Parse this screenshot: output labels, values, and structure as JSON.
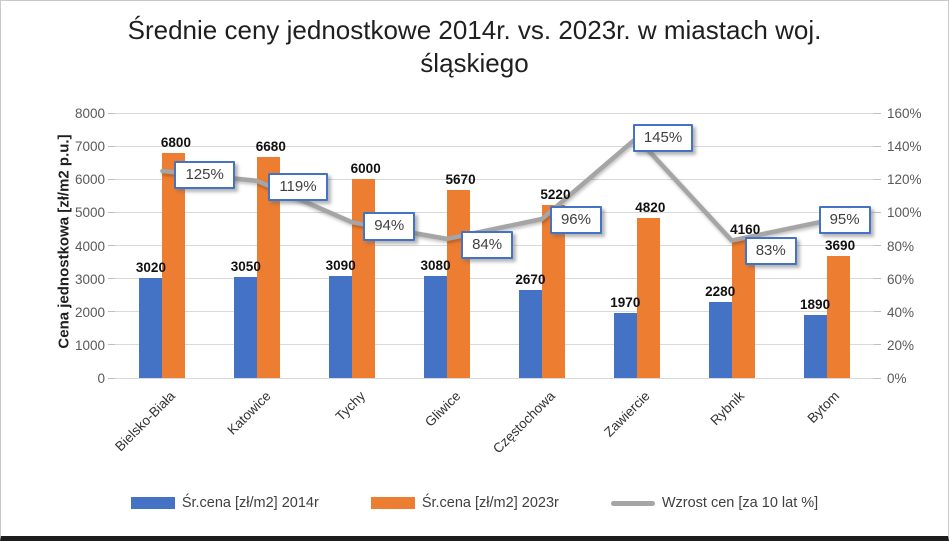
{
  "chart_data": {
    "type": "combo-bar-line",
    "title_lines": [
      "Średnie ceny jednostkowe 2014r. vs. 2023r. w miastach woj.",
      "śląskiego"
    ],
    "categories": [
      "Bielsko-Biała",
      "Katowice",
      "Tychy",
      "Gliwice",
      "Częstochowa",
      "Zawiercie",
      "Rybnik",
      "Bytom"
    ],
    "series": [
      {
        "name": "Śr.cena [zł/m2] 2014r",
        "type": "bar",
        "color": "#4472C4",
        "values": [
          3020,
          3050,
          3090,
          3080,
          2670,
          1970,
          2280,
          1890
        ]
      },
      {
        "name": "Śr.cena [zł/m2] 2023r",
        "type": "bar",
        "color": "#ED7D31",
        "values": [
          6800,
          6680,
          6000,
          5670,
          5220,
          4820,
          4160,
          3690
        ]
      },
      {
        "name": "Wzrost cen [za 10 lat %]",
        "type": "line",
        "color": "#A5A5A5",
        "values": [
          125,
          119,
          94,
          84,
          96,
          145,
          83,
          95
        ],
        "label_suffix": "%"
      }
    ],
    "axes": {
      "left": {
        "title": "Cena jednostkowa [zł/m2 p.u.]",
        "min": 0,
        "max": 8000,
        "step": 1000,
        "tick_labels": [
          "0",
          "1000",
          "2000",
          "3000",
          "4000",
          "5000",
          "6000",
          "7000",
          "8000"
        ]
      },
      "right": {
        "min": 0,
        "max": 160,
        "step": 20,
        "suffix": "%",
        "tick_labels": [
          "0%",
          "20%",
          "40%",
          "60%",
          "80%",
          "100%",
          "120%",
          "140%",
          "160%"
        ]
      }
    },
    "grid": true,
    "legend_position": "bottom",
    "colors": {
      "grid": "#D9D9D9",
      "label_box_border": "#4472C4",
      "bar_2014": "#4472C4",
      "bar_2023": "#ED7D31",
      "growth_line": "#A5A5A5"
    }
  }
}
